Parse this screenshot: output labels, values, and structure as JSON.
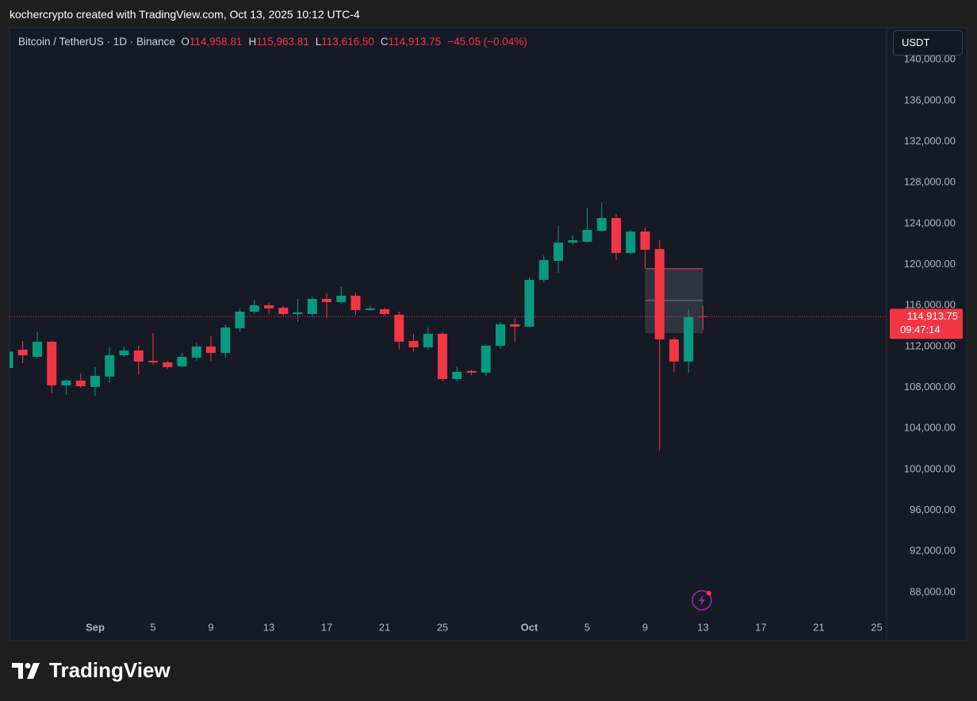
{
  "header": {
    "credit": "kochercrypto created with TradingView.com, Oct 13, 2025 10:12 UTC-4"
  },
  "brand": "TradingView",
  "currency_button": "USDT",
  "chart_data": {
    "type": "candlestick",
    "symbol": "Bitcoin / TetherUS · 1D · Binance",
    "legend_keys": [
      "O",
      "H",
      "L",
      "C"
    ],
    "last_labels": {
      "open": "114,958.81",
      "high": "115,963.81",
      "low": "113,616.50",
      "close": "114,913.75"
    },
    "change": "−45.05 (−0.04%)",
    "countdown": "09:47:14",
    "up_color": "#089981",
    "down_color": "#f23645",
    "categories": [
      "Aug 26",
      "Aug 27",
      "Aug 28",
      "Aug 29",
      "Aug 30",
      "Aug 31",
      "Sep 1",
      "Sep 2",
      "Sep 3",
      "Sep 4",
      "Sep 5",
      "Sep 6",
      "Sep 7",
      "Sep 8",
      "Sep 9",
      "Sep 10",
      "Sep 11",
      "Sep 12",
      "Sep 13",
      "Sep 14",
      "Sep 15",
      "Sep 16",
      "Sep 17",
      "Sep 18",
      "Sep 19",
      "Sep 20",
      "Sep 21",
      "Sep 22",
      "Sep 23",
      "Sep 24",
      "Sep 25",
      "Sep 26",
      "Sep 27",
      "Sep 28",
      "Sep 29",
      "Sep 30",
      "Oct 1",
      "Oct 2",
      "Oct 3",
      "Oct 4",
      "Oct 5",
      "Oct 6",
      "Oct 7",
      "Oct 8",
      "Oct 9",
      "Oct 10",
      "Oct 11",
      "Oct 12",
      "Oct 13",
      "Oct 14",
      "Oct 15",
      "Oct 16",
      "Oct 17",
      "Oct 18",
      "Oct 19",
      "Oct 20",
      "Oct 21",
      "Oct 22",
      "Oct 23",
      "Oct 24",
      "Oct 25"
    ],
    "open": [
      109900,
      111691,
      110994,
      112465,
      108207,
      108671,
      108052,
      109058,
      111149,
      111613,
      110607,
      110452,
      110065,
      110917,
      112000,
      111381,
      113781,
      115407,
      116026,
      115794,
      115175,
      115175,
      116646,
      116336,
      116955,
      115562,
      115639,
      115097,
      112542,
      111923,
      113239,
      108826,
      109601,
      109446,
      112078,
      114168,
      113936,
      118504,
      120362,
      122143,
      122220,
      123304,
      124543,
      121136,
      123227,
      121523,
      112697,
      110530,
      114958.81,
      null,
      null,
      null,
      null,
      null,
      null,
      null,
      null,
      null,
      null,
      null,
      null
    ],
    "high": [
      111800,
      112542,
      113394,
      112542,
      108826,
      109368,
      109987,
      111923,
      112000,
      112078,
      113317,
      110607,
      111381,
      112388,
      113007,
      114091,
      115639,
      116568,
      116336,
      115949,
      116646,
      116878,
      117187,
      117807,
      117265,
      116026,
      115794,
      115407,
      113239,
      113859,
      113472,
      110065,
      109755,
      112233,
      114400,
      114788,
      118736,
      120904,
      123769,
      122840,
      125549,
      126091,
      124930,
      123382,
      123614,
      122375,
      112929,
      115639,
      115963.81,
      null,
      null,
      null,
      null,
      null,
      null,
      null,
      null,
      null,
      null,
      null,
      null
    ],
    "low": [
      109700,
      110375,
      110839,
      107433,
      107278,
      107975,
      107201,
      108439,
      110994,
      109291,
      110220,
      109832,
      109988,
      110607,
      110607,
      110917,
      113472,
      115175,
      115175,
      115020,
      114400,
      114865,
      114788,
      116181,
      115097,
      115484,
      115020,
      111691,
      111536,
      111691,
      108594,
      108594,
      109213,
      109136,
      111768,
      112465,
      113859,
      118272,
      119201,
      121911,
      122143,
      123150,
      120440,
      120982,
      119666,
      101858,
      109523,
      109446,
      113616.5,
      null,
      null,
      null,
      null,
      null,
      null,
      null,
      null,
      null,
      null,
      null,
      null
    ],
    "close": [
      111500,
      111149,
      112465,
      108207,
      108671,
      108129,
      109136,
      111149,
      111613,
      110530,
      110452,
      109988,
      110994,
      112000,
      111381,
      113859,
      115407,
      116026,
      115716,
      115175,
      115330,
      116646,
      116336,
      116955,
      115562,
      115717,
      115175,
      112465,
      111923,
      113239,
      108826,
      109523,
      109446,
      112078,
      114168,
      113936,
      118504,
      120440,
      122143,
      122375,
      123382,
      124543,
      121136,
      123227,
      121446,
      112697,
      110530,
      114865,
      114913.75,
      null,
      null,
      null,
      null,
      null,
      null,
      null,
      null,
      null,
      null,
      null,
      null
    ],
    "box": {
      "from": "Oct 9",
      "to": "Oct 13",
      "top": 119600,
      "bottom": 113300,
      "line": 116500
    },
    "ylim": [
      85830,
      143120
    ],
    "yticks": [
      {
        "value": 88000,
        "label": "88,000.00"
      },
      {
        "value": 92000,
        "label": "92,000.00"
      },
      {
        "value": 96000,
        "label": "96,000.00"
      },
      {
        "value": 100000,
        "label": "100,000.00"
      },
      {
        "value": 104000,
        "label": "104,000.00"
      },
      {
        "value": 108000,
        "label": "108,000.00"
      },
      {
        "value": 112000,
        "label": "112,000.00"
      },
      {
        "value": 116000,
        "label": "116,000.00"
      },
      {
        "value": 120000,
        "label": "120,000.00"
      },
      {
        "value": 124000,
        "label": "124,000.00"
      },
      {
        "value": 128000,
        "label": "128,000.00"
      },
      {
        "value": 132000,
        "label": "132,000.00"
      },
      {
        "value": 136000,
        "label": "136,000.00"
      },
      {
        "value": 140000,
        "label": "140,000.00"
      }
    ],
    "xticks": [
      {
        "value": "Sep 1",
        "label": "Sep"
      },
      {
        "value": "Sep 5",
        "label": "5"
      },
      {
        "value": "Sep 9",
        "label": "9"
      },
      {
        "value": "Sep 13",
        "label": "13"
      },
      {
        "value": "Sep 17",
        "label": "17"
      },
      {
        "value": "Sep 21",
        "label": "21"
      },
      {
        "value": "Sep 25",
        "label": "25"
      },
      {
        "value": "Oct 1",
        "label": "Oct"
      },
      {
        "value": "Oct 5",
        "label": "5"
      },
      {
        "value": "Oct 9",
        "label": "9"
      },
      {
        "value": "Oct 13",
        "label": "13"
      },
      {
        "value": "Oct 17",
        "label": "17"
      },
      {
        "value": "Oct 21",
        "label": "21"
      },
      {
        "value": "Oct 25",
        "label": "25"
      }
    ],
    "grid": false
  }
}
